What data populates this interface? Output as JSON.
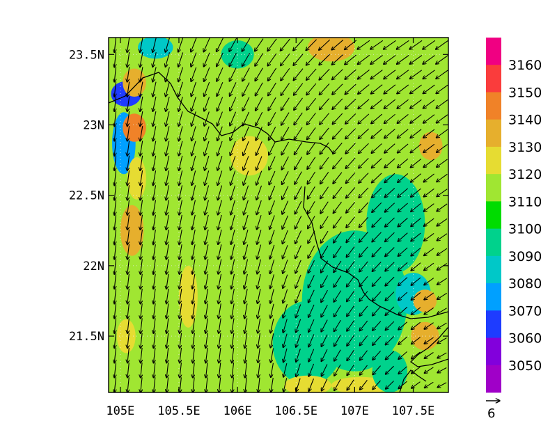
{
  "chart_data": {
    "type": "heatmap",
    "title": "",
    "xlabel": "",
    "ylabel": "",
    "xlim": [
      104.9,
      107.8
    ],
    "ylim": [
      21.1,
      23.62
    ],
    "x_ticks": [
      {
        "value": 105.0,
        "label": "105E"
      },
      {
        "value": 105.5,
        "label": "105.5E"
      },
      {
        "value": 106.0,
        "label": "106E"
      },
      {
        "value": 106.5,
        "label": "106.5E"
      },
      {
        "value": 107.0,
        "label": "107E"
      },
      {
        "value": 107.5,
        "label": "107.5E"
      }
    ],
    "y_ticks": [
      {
        "value": 21.5,
        "label": "21.5N"
      },
      {
        "value": 22.0,
        "label": "22N"
      },
      {
        "value": 22.5,
        "label": "22.5N"
      },
      {
        "value": 23.0,
        "label": "23N"
      },
      {
        "value": 23.5,
        "label": "23.5N"
      }
    ],
    "grid": "dotted",
    "colorbar": {
      "levels": [
        "3050",
        "3060",
        "3070",
        "3080",
        "3090",
        "3100",
        "3110",
        "3120",
        "3130",
        "3140",
        "3150",
        "3160"
      ],
      "colors": [
        "#a000c8",
        "#8200dc",
        "#1e3cff",
        "#00a0ff",
        "#00c8c8",
        "#00d28c",
        "#00dc00",
        "#a0e632",
        "#e6dc32",
        "#e6af2d",
        "#f08228",
        "#fa3c3c",
        "#f00082"
      ],
      "placement": "right"
    },
    "field": {
      "background_value": 3110,
      "patches": [
        {
          "lon": 105.05,
          "lat": 23.22,
          "rx": 0.13,
          "ry": 0.09,
          "level": 3060
        },
        {
          "lon": 105.03,
          "lat": 22.87,
          "rx": 0.1,
          "ry": 0.22,
          "level": 3070
        },
        {
          "lon": 105.3,
          "lat": 23.55,
          "rx": 0.15,
          "ry": 0.08,
          "level": 3080
        },
        {
          "lon": 105.12,
          "lat": 22.98,
          "rx": 0.1,
          "ry": 0.1,
          "level": 3140
        },
        {
          "lon": 105.12,
          "lat": 23.3,
          "rx": 0.1,
          "ry": 0.1,
          "level": 3130
        },
        {
          "lon": 105.1,
          "lat": 22.25,
          "rx": 0.1,
          "ry": 0.18,
          "level": 3130
        },
        {
          "lon": 105.14,
          "lat": 22.62,
          "rx": 0.08,
          "ry": 0.15,
          "level": 3120
        },
        {
          "lon": 105.58,
          "lat": 21.78,
          "rx": 0.08,
          "ry": 0.22,
          "level": 3120
        },
        {
          "lon": 106.1,
          "lat": 22.78,
          "rx": 0.16,
          "ry": 0.14,
          "level": 3120
        },
        {
          "lon": 106.8,
          "lat": 23.55,
          "rx": 0.2,
          "ry": 0.1,
          "level": 3130
        },
        {
          "lon": 106.0,
          "lat": 23.5,
          "rx": 0.14,
          "ry": 0.1,
          "level": 3090
        },
        {
          "lon": 107.0,
          "lat": 21.75,
          "rx": 0.45,
          "ry": 0.5,
          "level": 3090
        },
        {
          "lon": 106.6,
          "lat": 21.45,
          "rx": 0.3,
          "ry": 0.3,
          "level": 3090
        },
        {
          "lon": 107.35,
          "lat": 22.3,
          "rx": 0.25,
          "ry": 0.35,
          "level": 3090
        },
        {
          "lon": 107.5,
          "lat": 21.8,
          "rx": 0.15,
          "ry": 0.15,
          "level": 3080
        },
        {
          "lon": 107.6,
          "lat": 21.5,
          "rx": 0.12,
          "ry": 0.1,
          "level": 3130
        },
        {
          "lon": 107.6,
          "lat": 21.75,
          "rx": 0.1,
          "ry": 0.08,
          "level": 3130
        },
        {
          "lon": 107.65,
          "lat": 22.85,
          "rx": 0.1,
          "ry": 0.1,
          "level": 3130
        },
        {
          "lon": 107.05,
          "lat": 21.15,
          "rx": 0.25,
          "ry": 0.06,
          "level": 3120
        },
        {
          "lon": 106.6,
          "lat": 21.15,
          "rx": 0.2,
          "ry": 0.07,
          "level": 3120
        },
        {
          "lon": 107.3,
          "lat": 21.25,
          "rx": 0.15,
          "ry": 0.15,
          "level": 3090
        },
        {
          "lon": 105.05,
          "lat": 21.5,
          "rx": 0.08,
          "ry": 0.12,
          "level": 3120
        }
      ]
    },
    "wind_field": {
      "rows": 24,
      "cols": 26,
      "west_angle_deg": 6,
      "northeast_angle_deg": 55,
      "southeast_angle_deg": 62
    },
    "reference_vector": {
      "label": "6"
    }
  }
}
